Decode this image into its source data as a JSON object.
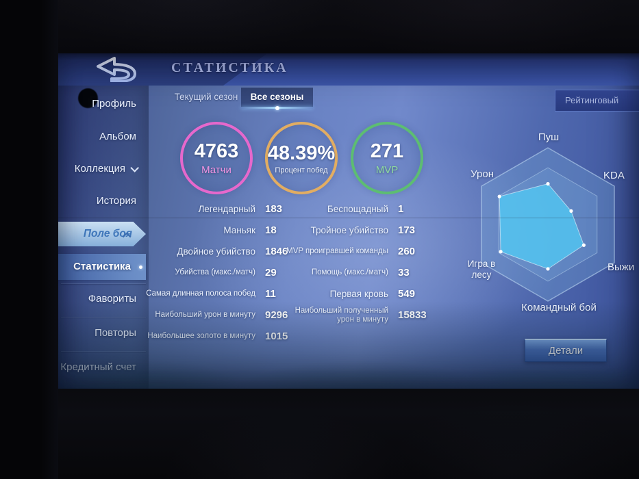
{
  "header": {
    "title": "СТАТИСТИКА"
  },
  "tabs": {
    "current_season": "Текущий сезон",
    "all_seasons": "Все сезоны"
  },
  "mode_filter": {
    "selected": "Рейтинговый"
  },
  "sidebar": {
    "items": [
      {
        "label": "Профиль"
      },
      {
        "label": "Альбом"
      },
      {
        "label": "Коллекция"
      },
      {
        "label": "История"
      },
      {
        "label": "Поле боя"
      },
      {
        "label": "Статистика"
      },
      {
        "label": "Фавориты"
      },
      {
        "label": "Повторы"
      },
      {
        "label": "Кредитный счет"
      }
    ]
  },
  "summary_circles": [
    {
      "value": "4763",
      "label": "Матчи",
      "ring_color": "#e668cc",
      "label_color": "#f394e2"
    },
    {
      "value": "48.39%",
      "label": "Процент побед",
      "ring_color": "#e2ad62",
      "label_color": "#f3f6fd"
    },
    {
      "value": "271",
      "label": "MVP",
      "ring_color": "#5dbd72",
      "label_color": "#8fdb9e"
    }
  ],
  "stats": {
    "left": [
      {
        "label": "Легендарный",
        "value": "183"
      },
      {
        "label": "Маньяк",
        "value": "18"
      },
      {
        "label": "Двойное убийство",
        "value": "1846"
      },
      {
        "label": "Убийства (макс./матч)",
        "value": "29"
      },
      {
        "label": "Самая длинная полоса побед",
        "value": "11"
      },
      {
        "label": "Наибольший урон в минуту",
        "value": "9296"
      },
      {
        "label": "Наибольшее золото в минуту",
        "value": "1015"
      }
    ],
    "right": [
      {
        "label": "Беспощадный",
        "value": "1"
      },
      {
        "label": "Тройное убийство",
        "value": "173"
      },
      {
        "label": "MVP проигравшей команды",
        "value": "260"
      },
      {
        "label": "Помощь (макс./матч)",
        "value": "33"
      },
      {
        "label": "Первая кровь",
        "value": "549"
      },
      {
        "label": "Наибольший полученный урон в минуту",
        "value": "15833"
      }
    ]
  },
  "chart_data": {
    "type": "radar",
    "axes": [
      "Пуш",
      "KDA",
      "Выжи",
      "Командный бой",
      "Игра в\nлесу",
      "Урон"
    ],
    "values": [
      0.53,
      0.35,
      0.54,
      0.58,
      0.71,
      0.73
    ],
    "value_range": [
      0,
      1
    ],
    "grid_rings": [
      1,
      0.74
    ],
    "fill_color": "#52c6f2",
    "grid_fill_color": "#7fb4e0",
    "grid_line_color": "#c3def5"
  },
  "details_button": {
    "label": "Детали"
  }
}
